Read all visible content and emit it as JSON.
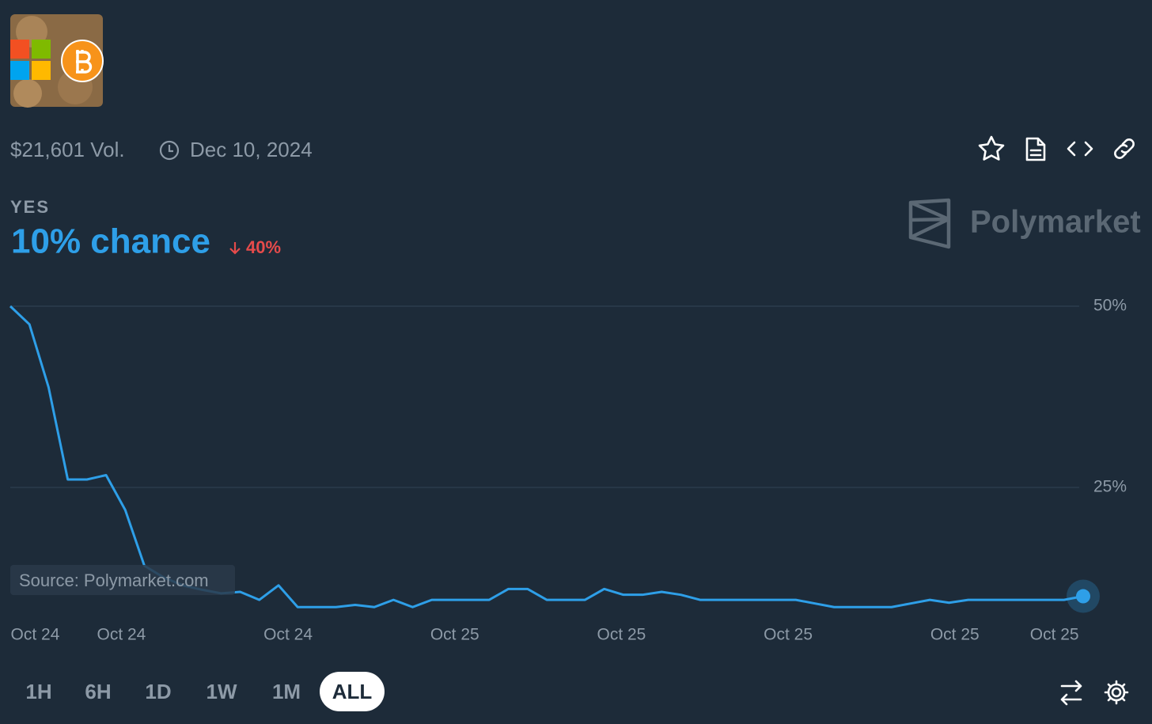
{
  "header": {
    "volume": "$21,601 Vol.",
    "end_date": "Dec 10, 2024",
    "outcome": "YES",
    "chance": "10% chance",
    "change": "40%",
    "brand": "Polymarket",
    "source": "Source: Polymarket.com"
  },
  "time_ranges": [
    "1H",
    "6H",
    "1D",
    "1W",
    "1M",
    "ALL"
  ],
  "selected_range": "ALL",
  "chart_data": {
    "type": "line",
    "color": "#2e9fe8",
    "values": [
      50,
      47.5,
      38.8,
      26.1,
      26.1,
      26.7,
      21.9,
      14.2,
      12.6,
      11.5,
      10.9,
      10.4,
      10.6,
      9.5,
      11.5,
      8.5,
      8.5,
      8.5,
      8.8,
      8.5,
      9.5,
      8.5,
      9.5,
      9.5,
      9.5,
      9.5,
      11.0,
      11.0,
      9.5,
      9.5,
      9.5,
      11.0,
      10.2,
      10.2,
      10.6,
      10.2,
      9.5,
      9.5,
      9.5,
      9.5,
      9.5,
      9.5,
      9.0,
      8.5,
      8.5,
      8.5,
      8.5,
      9.0,
      9.5,
      9.1,
      9.5,
      9.5,
      9.5,
      9.5,
      9.5,
      9.5,
      10.0
    ],
    "xlim": [
      0,
      56
    ],
    "xticks": [
      {
        "value": 1.3,
        "label": "Oct 24"
      },
      {
        "value": 5.8,
        "label": "Oct 24"
      },
      {
        "value": 14.5,
        "label": "Oct 24"
      },
      {
        "value": 23.2,
        "label": "Oct 25"
      },
      {
        "value": 31.9,
        "label": "Oct 25"
      },
      {
        "value": 40.6,
        "label": "Oct 25"
      },
      {
        "value": 49.3,
        "label": "Oct 25"
      },
      {
        "value": 54.5,
        "label": "Oct 25"
      }
    ],
    "ylim": [
      7,
      50
    ],
    "yticks": [
      {
        "value": 25,
        "label": "25%"
      },
      {
        "value": 50,
        "label": "50%"
      }
    ],
    "grid": true
  }
}
